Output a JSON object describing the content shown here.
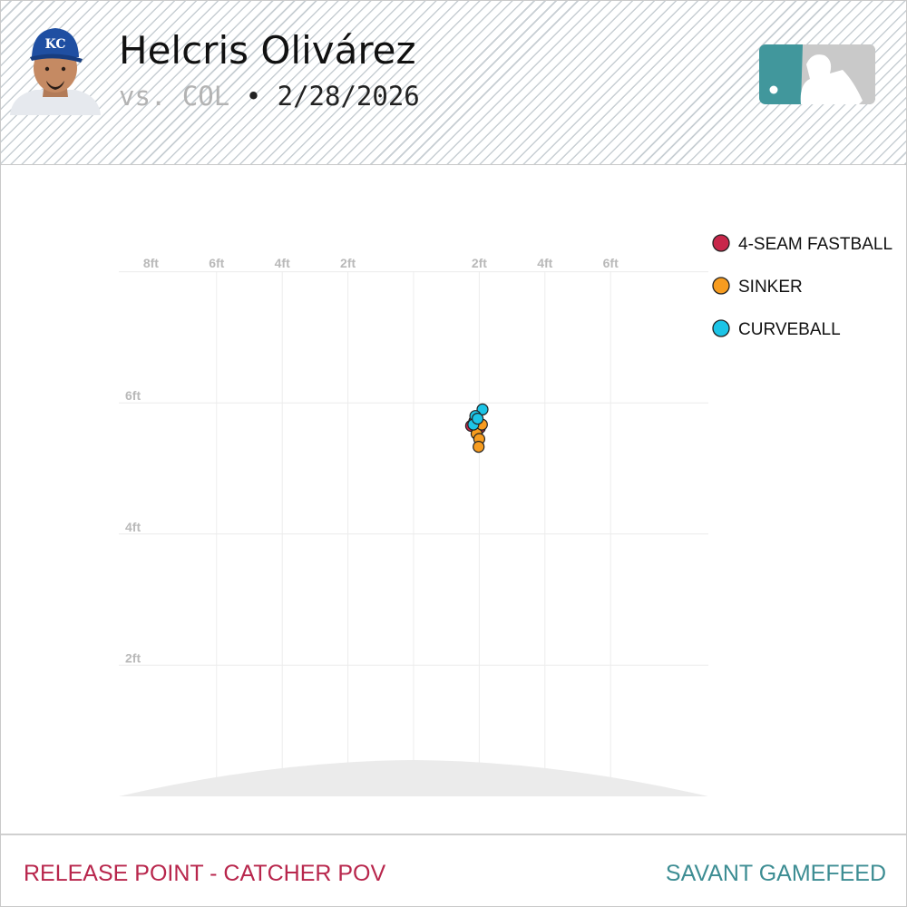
{
  "header": {
    "player_name": "Helcris Olivárez",
    "opponent": "vs. COL",
    "separator": "•",
    "date": "2/28/2026"
  },
  "footer": {
    "left_label": "RELEASE POINT - CATCHER POV",
    "right_label": "SAVANT GAMEFEED"
  },
  "icons": {
    "avatar": "player-headshot-icon",
    "logo": "mlb-logo-icon"
  },
  "colors": {
    "footer_left": "#b8264c",
    "footer_right": "#3d8d93",
    "logo_bg": "#41979c",
    "mound": "#ebebeb"
  },
  "chart_data": {
    "type": "scatter",
    "title": "",
    "xlabel": "",
    "ylabel": "",
    "xlim": [
      -9,
      9
    ],
    "ylim": [
      0,
      8
    ],
    "x_ticks": [
      {
        "value": -8,
        "label": "8ft"
      },
      {
        "value": -6,
        "label": "6ft"
      },
      {
        "value": -4,
        "label": "4ft"
      },
      {
        "value": -2,
        "label": "2ft"
      },
      {
        "value": 2,
        "label": "2ft"
      },
      {
        "value": 4,
        "label": "4ft"
      },
      {
        "value": 6,
        "label": "6ft"
      }
    ],
    "y_ticks": [
      {
        "value": 8,
        "label": "8ft"
      },
      {
        "value": 6,
        "label": "6ft"
      },
      {
        "value": 4,
        "label": "4ft"
      },
      {
        "value": 2,
        "label": "2ft"
      }
    ],
    "grid": true,
    "legend_position": "top-right",
    "series": [
      {
        "name": "4-SEAM FASTBALL",
        "color": "#c8274a",
        "points": [
          [
            1.75,
            5.65
          ],
          [
            1.95,
            5.58
          ],
          [
            1.85,
            5.72
          ],
          [
            2.02,
            5.62
          ]
        ]
      },
      {
        "name": "SINKER",
        "color": "#f79c1f",
        "points": [
          [
            1.92,
            5.53
          ],
          [
            2.0,
            5.45
          ],
          [
            1.98,
            5.33
          ],
          [
            2.08,
            5.67
          ]
        ]
      },
      {
        "name": "CURVEBALL",
        "color": "#1cc4e6",
        "points": [
          [
            2.1,
            5.9
          ],
          [
            1.88,
            5.8
          ],
          [
            1.82,
            5.67
          ],
          [
            1.95,
            5.76
          ]
        ]
      }
    ]
  }
}
